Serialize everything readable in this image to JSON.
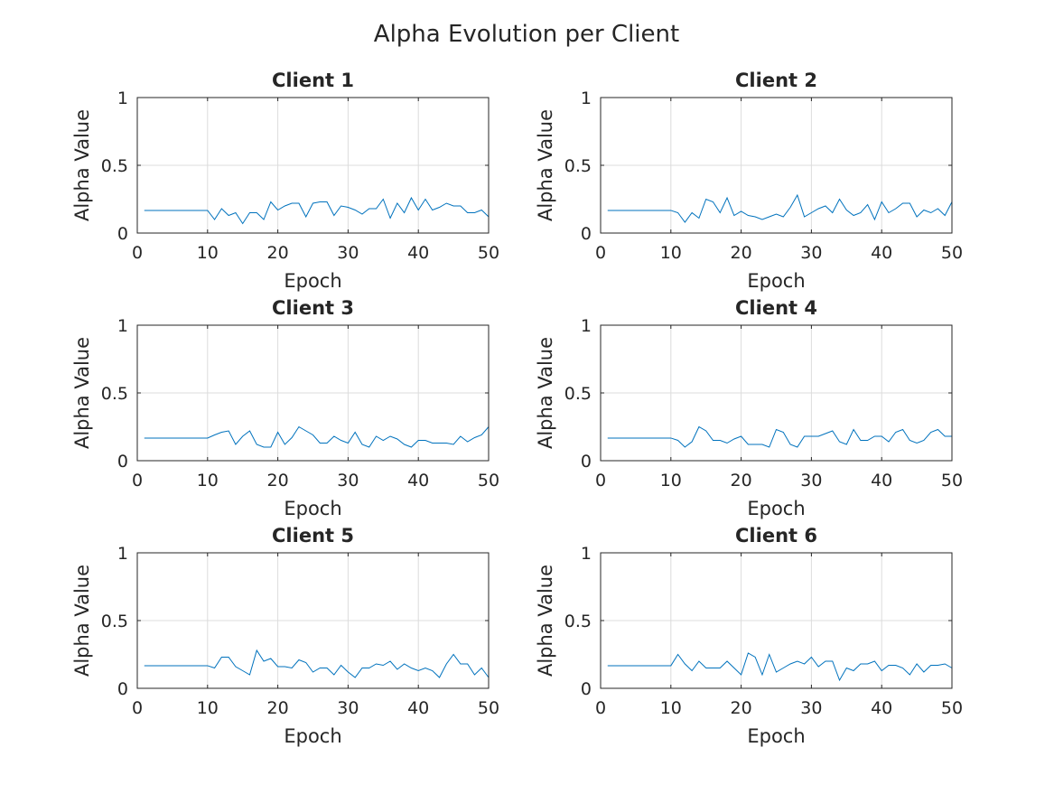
{
  "figure": {
    "title": "Alpha Evolution per Client"
  },
  "style": {
    "line_color": "#0072BD",
    "grid_color": "#dcdcdc",
    "axis_color": "#262626"
  },
  "chart_data": [
    {
      "type": "line",
      "title": "Client 1",
      "xlabel": "Epoch",
      "ylabel": "Alpha Value",
      "xlim": [
        0,
        50
      ],
      "ylim": [
        0,
        1
      ],
      "xticks": [
        0,
        10,
        20,
        30,
        40,
        50
      ],
      "yticks": [
        0,
        0.5,
        1
      ],
      "ytick_labels": [
        "0",
        "0.5",
        "1"
      ],
      "grid": true,
      "x": [
        1,
        2,
        3,
        4,
        5,
        6,
        7,
        8,
        9,
        10,
        11,
        12,
        13,
        14,
        15,
        16,
        17,
        18,
        19,
        20,
        21,
        22,
        23,
        24,
        25,
        26,
        27,
        28,
        29,
        30,
        31,
        32,
        33,
        34,
        35,
        36,
        37,
        38,
        39,
        40,
        41,
        42,
        43,
        44,
        45,
        46,
        47,
        48,
        49,
        50
      ],
      "values": [
        0.167,
        0.167,
        0.167,
        0.167,
        0.167,
        0.167,
        0.167,
        0.167,
        0.167,
        0.167,
        0.1,
        0.18,
        0.13,
        0.15,
        0.07,
        0.15,
        0.15,
        0.1,
        0.23,
        0.17,
        0.2,
        0.22,
        0.22,
        0.12,
        0.22,
        0.23,
        0.23,
        0.13,
        0.2,
        0.19,
        0.17,
        0.14,
        0.18,
        0.18,
        0.25,
        0.11,
        0.22,
        0.15,
        0.26,
        0.17,
        0.25,
        0.17,
        0.19,
        0.22,
        0.2,
        0.2,
        0.15,
        0.15,
        0.17,
        0.12
      ]
    },
    {
      "type": "line",
      "title": "Client 2",
      "xlabel": "Epoch",
      "ylabel": "Alpha Value",
      "xlim": [
        0,
        50
      ],
      "ylim": [
        0,
        1
      ],
      "xticks": [
        0,
        10,
        20,
        30,
        40,
        50
      ],
      "yticks": [
        0,
        0.5,
        1
      ],
      "ytick_labels": [
        "0",
        "0.5",
        "1"
      ],
      "grid": true,
      "x": [
        1,
        2,
        3,
        4,
        5,
        6,
        7,
        8,
        9,
        10,
        11,
        12,
        13,
        14,
        15,
        16,
        17,
        18,
        19,
        20,
        21,
        22,
        23,
        24,
        25,
        26,
        27,
        28,
        29,
        30,
        31,
        32,
        33,
        34,
        35,
        36,
        37,
        38,
        39,
        40,
        41,
        42,
        43,
        44,
        45,
        46,
        47,
        48,
        49,
        50
      ],
      "values": [
        0.167,
        0.167,
        0.167,
        0.167,
        0.167,
        0.167,
        0.167,
        0.167,
        0.167,
        0.167,
        0.15,
        0.08,
        0.15,
        0.11,
        0.25,
        0.23,
        0.15,
        0.26,
        0.13,
        0.16,
        0.13,
        0.12,
        0.1,
        0.12,
        0.14,
        0.12,
        0.19,
        0.28,
        0.12,
        0.15,
        0.18,
        0.2,
        0.15,
        0.25,
        0.17,
        0.13,
        0.15,
        0.21,
        0.1,
        0.23,
        0.15,
        0.18,
        0.22,
        0.22,
        0.12,
        0.17,
        0.15,
        0.18,
        0.13,
        0.23
      ]
    },
    {
      "type": "line",
      "title": "Client 3",
      "xlabel": "Epoch",
      "ylabel": "Alpha Value",
      "xlim": [
        0,
        50
      ],
      "ylim": [
        0,
        1
      ],
      "xticks": [
        0,
        10,
        20,
        30,
        40,
        50
      ],
      "yticks": [
        0,
        0.5,
        1
      ],
      "ytick_labels": [
        "0",
        "0.5",
        "1"
      ],
      "grid": true,
      "x": [
        1,
        2,
        3,
        4,
        5,
        6,
        7,
        8,
        9,
        10,
        11,
        12,
        13,
        14,
        15,
        16,
        17,
        18,
        19,
        20,
        21,
        22,
        23,
        24,
        25,
        26,
        27,
        28,
        29,
        30,
        31,
        32,
        33,
        34,
        35,
        36,
        37,
        38,
        39,
        40,
        41,
        42,
        43,
        44,
        45,
        46,
        47,
        48,
        49,
        50
      ],
      "values": [
        0.167,
        0.167,
        0.167,
        0.167,
        0.167,
        0.167,
        0.167,
        0.167,
        0.167,
        0.167,
        0.19,
        0.21,
        0.22,
        0.12,
        0.18,
        0.22,
        0.12,
        0.1,
        0.1,
        0.21,
        0.12,
        0.17,
        0.25,
        0.22,
        0.19,
        0.13,
        0.13,
        0.18,
        0.15,
        0.13,
        0.21,
        0.12,
        0.1,
        0.18,
        0.15,
        0.18,
        0.16,
        0.12,
        0.1,
        0.15,
        0.15,
        0.13,
        0.13,
        0.13,
        0.12,
        0.18,
        0.14,
        0.17,
        0.19,
        0.25
      ]
    },
    {
      "type": "line",
      "title": "Client 4",
      "xlabel": "Epoch",
      "ylabel": "Alpha Value",
      "xlim": [
        0,
        50
      ],
      "ylim": [
        0,
        1
      ],
      "xticks": [
        0,
        10,
        20,
        30,
        40,
        50
      ],
      "yticks": [
        0,
        0.5,
        1
      ],
      "ytick_labels": [
        "0",
        "0.5",
        "1"
      ],
      "grid": true,
      "x": [
        1,
        2,
        3,
        4,
        5,
        6,
        7,
        8,
        9,
        10,
        11,
        12,
        13,
        14,
        15,
        16,
        17,
        18,
        19,
        20,
        21,
        22,
        23,
        24,
        25,
        26,
        27,
        28,
        29,
        30,
        31,
        32,
        33,
        34,
        35,
        36,
        37,
        38,
        39,
        40,
        41,
        42,
        43,
        44,
        45,
        46,
        47,
        48,
        49,
        50
      ],
      "values": [
        0.167,
        0.167,
        0.167,
        0.167,
        0.167,
        0.167,
        0.167,
        0.167,
        0.167,
        0.167,
        0.15,
        0.1,
        0.14,
        0.25,
        0.22,
        0.15,
        0.15,
        0.13,
        0.16,
        0.18,
        0.12,
        0.12,
        0.12,
        0.1,
        0.23,
        0.21,
        0.12,
        0.1,
        0.18,
        0.18,
        0.18,
        0.2,
        0.22,
        0.14,
        0.12,
        0.23,
        0.15,
        0.15,
        0.18,
        0.18,
        0.14,
        0.21,
        0.23,
        0.15,
        0.13,
        0.15,
        0.21,
        0.23,
        0.18,
        0.18
      ]
    },
    {
      "type": "line",
      "title": "Client 5",
      "xlabel": "Epoch",
      "ylabel": "Alpha Value",
      "xlim": [
        0,
        50
      ],
      "ylim": [
        0,
        1
      ],
      "xticks": [
        0,
        10,
        20,
        30,
        40,
        50
      ],
      "yticks": [
        0,
        0.5,
        1
      ],
      "ytick_labels": [
        "0",
        "0.5",
        "1"
      ],
      "grid": true,
      "x": [
        1,
        2,
        3,
        4,
        5,
        6,
        7,
        8,
        9,
        10,
        11,
        12,
        13,
        14,
        15,
        16,
        17,
        18,
        19,
        20,
        21,
        22,
        23,
        24,
        25,
        26,
        27,
        28,
        29,
        30,
        31,
        32,
        33,
        34,
        35,
        36,
        37,
        38,
        39,
        40,
        41,
        42,
        43,
        44,
        45,
        46,
        47,
        48,
        49,
        50
      ],
      "values": [
        0.167,
        0.167,
        0.167,
        0.167,
        0.167,
        0.167,
        0.167,
        0.167,
        0.167,
        0.167,
        0.15,
        0.23,
        0.23,
        0.16,
        0.13,
        0.1,
        0.28,
        0.2,
        0.22,
        0.16,
        0.16,
        0.15,
        0.21,
        0.19,
        0.12,
        0.15,
        0.15,
        0.1,
        0.17,
        0.12,
        0.08,
        0.15,
        0.15,
        0.18,
        0.17,
        0.2,
        0.14,
        0.18,
        0.15,
        0.13,
        0.15,
        0.13,
        0.08,
        0.18,
        0.25,
        0.18,
        0.18,
        0.1,
        0.15,
        0.08
      ]
    },
    {
      "type": "line",
      "title": "Client 6",
      "xlabel": "Epoch",
      "ylabel": "Alpha Value",
      "xlim": [
        0,
        50
      ],
      "ylim": [
        0,
        1
      ],
      "xticks": [
        0,
        10,
        20,
        30,
        40,
        50
      ],
      "yticks": [
        0,
        0.5,
        1
      ],
      "ytick_labels": [
        "0",
        "0.5",
        "1"
      ],
      "grid": true,
      "x": [
        1,
        2,
        3,
        4,
        5,
        6,
        7,
        8,
        9,
        10,
        11,
        12,
        13,
        14,
        15,
        16,
        17,
        18,
        19,
        20,
        21,
        22,
        23,
        24,
        25,
        26,
        27,
        28,
        29,
        30,
        31,
        32,
        33,
        34,
        35,
        36,
        37,
        38,
        39,
        40,
        41,
        42,
        43,
        44,
        45,
        46,
        47,
        48,
        49,
        50
      ],
      "values": [
        0.167,
        0.167,
        0.167,
        0.167,
        0.167,
        0.167,
        0.167,
        0.167,
        0.167,
        0.167,
        0.25,
        0.18,
        0.13,
        0.2,
        0.15,
        0.15,
        0.15,
        0.2,
        0.15,
        0.1,
        0.26,
        0.23,
        0.1,
        0.25,
        0.12,
        0.15,
        0.18,
        0.2,
        0.18,
        0.23,
        0.16,
        0.2,
        0.2,
        0.06,
        0.15,
        0.13,
        0.18,
        0.18,
        0.2,
        0.13,
        0.17,
        0.17,
        0.15,
        0.1,
        0.18,
        0.12,
        0.17,
        0.17,
        0.18,
        0.15
      ]
    }
  ]
}
